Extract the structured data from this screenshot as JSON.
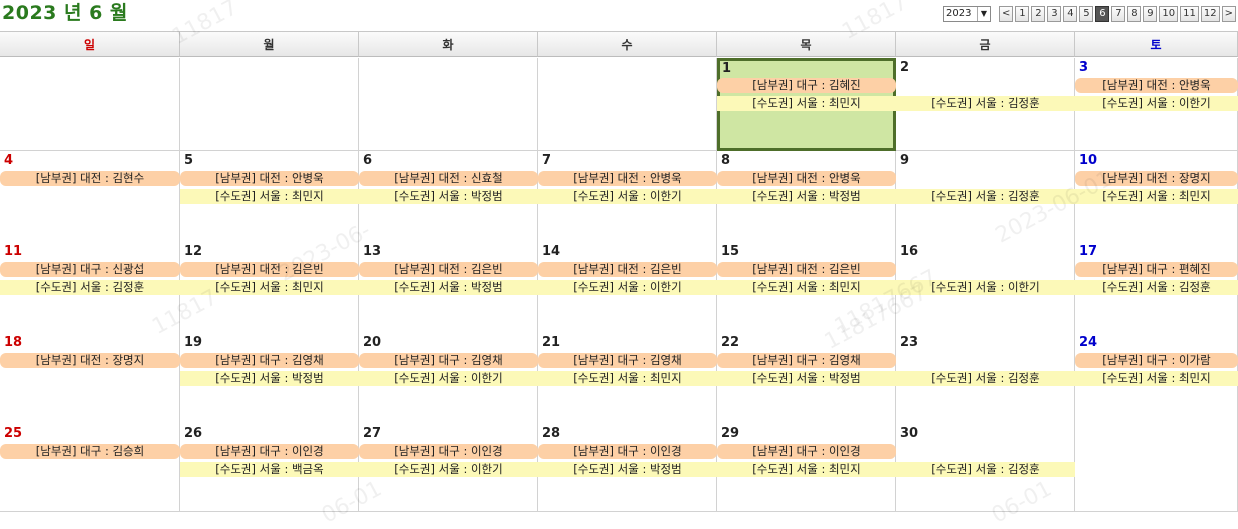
{
  "title": "2023 년 6 월",
  "year_select": {
    "value": "2023"
  },
  "month_nav": {
    "prev_label": "<",
    "months": [
      "1",
      "2",
      "3",
      "4",
      "5",
      "6",
      "7",
      "8",
      "9",
      "10",
      "11",
      "12"
    ],
    "active": "6",
    "next_label": ">"
  },
  "weekdays": [
    "일",
    "월",
    "화",
    "수",
    "목",
    "금",
    "토"
  ],
  "today": "1",
  "colors": {
    "title": "#2a7a1e",
    "sunday": "#cc0000",
    "saturday": "#0000cc",
    "south_event": "#fdd0a6",
    "capital_event": "#fcf9b8",
    "today_bg": "#cfe6a3",
    "today_border": "#4e6e2a"
  },
  "weeks": [
    [
      {
        "day": "",
        "south": "",
        "capital": ""
      },
      {
        "day": "",
        "south": "",
        "capital": ""
      },
      {
        "day": "",
        "south": "",
        "capital": ""
      },
      {
        "day": "",
        "south": "",
        "capital": ""
      },
      {
        "day": "1",
        "south": "[남부권] 대구 : 김혜진",
        "capital": "[수도권] 서울 : 최민지"
      },
      {
        "day": "2",
        "south": "",
        "capital": "[수도권] 서울 : 김정훈"
      },
      {
        "day": "3",
        "south": "[남부권] 대전 : 안병욱",
        "capital": "[수도권] 서울 : 이한기"
      }
    ],
    [
      {
        "day": "4",
        "south": "[남부권] 대전 : 김현수",
        "capital": ""
      },
      {
        "day": "5",
        "south": "[남부권] 대전 : 안병욱",
        "capital": "[수도권] 서울 : 최민지"
      },
      {
        "day": "6",
        "south": "[남부권] 대전 : 신효철",
        "capital": "[수도권] 서울 : 박정범"
      },
      {
        "day": "7",
        "south": "[남부권] 대전 : 안병욱",
        "capital": "[수도권] 서울 : 이한기"
      },
      {
        "day": "8",
        "south": "[남부권] 대전 : 안병욱",
        "capital": "[수도권] 서울 : 박정범"
      },
      {
        "day": "9",
        "south": "",
        "capital": "[수도권] 서울 : 김정훈"
      },
      {
        "day": "10",
        "south": "[남부권] 대전 : 장명지",
        "capital": "[수도권] 서울 : 최민지"
      }
    ],
    [
      {
        "day": "11",
        "south": "[남부권] 대구 : 신광섭",
        "capital": "[수도권] 서울 : 김정훈"
      },
      {
        "day": "12",
        "south": "[남부권] 대전 : 김은빈",
        "capital": "[수도권] 서울 : 최민지"
      },
      {
        "day": "13",
        "south": "[남부권] 대전 : 김은빈",
        "capital": "[수도권] 서울 : 박정범"
      },
      {
        "day": "14",
        "south": "[남부권] 대전 : 김은빈",
        "capital": "[수도권] 서울 : 이한기"
      },
      {
        "day": "15",
        "south": "[남부권] 대전 : 김은빈",
        "capital": "[수도권] 서울 : 최민지"
      },
      {
        "day": "16",
        "south": "",
        "capital": "[수도권] 서울 : 이한기"
      },
      {
        "day": "17",
        "south": "[남부권] 대구 : 편혜진",
        "capital": "[수도권] 서울 : 김정훈"
      }
    ],
    [
      {
        "day": "18",
        "south": "[남부권] 대전 : 장명지",
        "capital": ""
      },
      {
        "day": "19",
        "south": "[남부권] 대구 : 김영채",
        "capital": "[수도권] 서울 : 박정범"
      },
      {
        "day": "20",
        "south": "[남부권] 대구 : 김영채",
        "capital": "[수도권] 서울 : 이한기"
      },
      {
        "day": "21",
        "south": "[남부권] 대구 : 김영채",
        "capital": "[수도권] 서울 : 최민지"
      },
      {
        "day": "22",
        "south": "[남부권] 대구 : 김영채",
        "capital": "[수도권] 서울 : 박정범"
      },
      {
        "day": "23",
        "south": "",
        "capital": "[수도권] 서울 : 김정훈"
      },
      {
        "day": "24",
        "south": "[남부권] 대구 : 이가람",
        "capital": "[수도권] 서울 : 최민지"
      }
    ],
    [
      {
        "day": "25",
        "south": "[남부권] 대구 : 김승희",
        "capital": ""
      },
      {
        "day": "26",
        "south": "[남부권] 대구 : 이인경",
        "capital": "[수도권] 서울 : 백금옥"
      },
      {
        "day": "27",
        "south": "[남부권] 대구 : 이인경",
        "capital": "[수도권] 서울 : 이한기"
      },
      {
        "day": "28",
        "south": "[남부권] 대구 : 이인경",
        "capital": "[수도권] 서울 : 박정범"
      },
      {
        "day": "29",
        "south": "[남부권] 대구 : 이인경",
        "capital": "[수도권] 서울 : 최민지"
      },
      {
        "day": "30",
        "south": "",
        "capital": "[수도권] 서울 : 김정훈"
      },
      {
        "day": "",
        "south": "",
        "capital": ""
      }
    ]
  ],
  "watermark": [
    "11817",
    "11817",
    "2023-06-",
    "11817667",
    "2023-06-01",
    "11817",
    "11817667",
    "06-01",
    "06-01"
  ]
}
